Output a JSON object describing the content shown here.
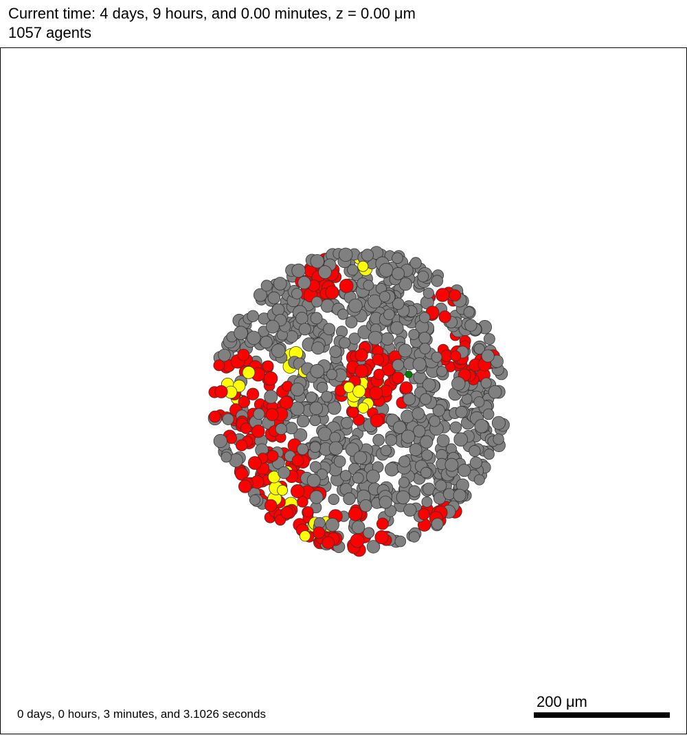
{
  "header": {
    "time_line": "Current time: 4 days, 9 hours, and 0.00 minutes, z = 0.00 μm",
    "agents_line": "1057 agents"
  },
  "footer": {
    "elapsed": "0 days, 0 hours, 3 minutes, and 3.1026 seconds",
    "scale_label": "200 μm"
  },
  "colors": {
    "dead": "#808080",
    "red": "#ff0000",
    "yellow": "#ffff00",
    "green": "#008000",
    "outline": "#333333"
  },
  "agent_counts": {
    "total": 1057
  }
}
